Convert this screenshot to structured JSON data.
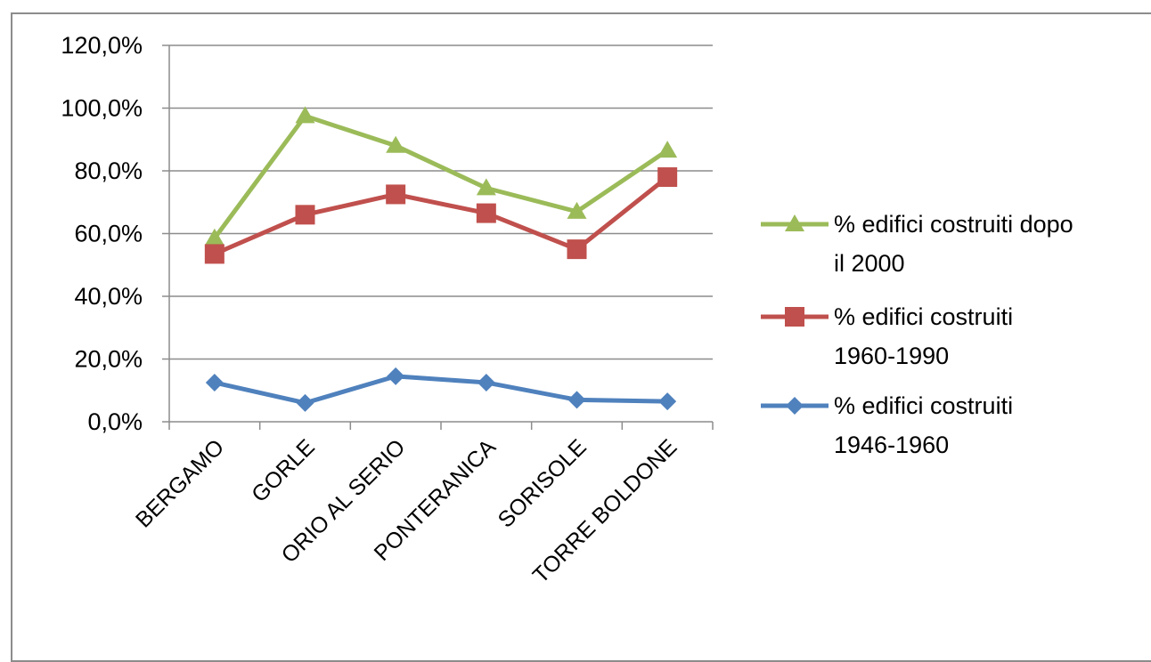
{
  "chart_data": {
    "type": "line",
    "title": "",
    "xlabel": "",
    "ylabel": "",
    "categories": [
      "BERGAMO",
      "GORLE",
      "ORIO AL SERIO",
      "PONTERANICA",
      "SORISOLE",
      "TORRE BOLDONE"
    ],
    "ylim": [
      0,
      120
    ],
    "yticks": [
      0,
      20,
      40,
      60,
      80,
      100,
      120
    ],
    "ytick_labels": [
      "0,0%",
      "20,0%",
      "40,0%",
      "60,0%",
      "80,0%",
      "100,0%",
      "120,0%"
    ],
    "grid": "horizontal",
    "legend_position": "right",
    "series": [
      {
        "name": "% edifici costruiti dopo il 2000",
        "legend_lines": [
          "% edifici costruiti dopo",
          "il 2000"
        ],
        "color": "#9bbb59",
        "marker": "triangle",
        "values": [
          58.5,
          97.5,
          88.0,
          74.5,
          67.0,
          86.5
        ]
      },
      {
        "name": "% edifici costruiti 1960-1990",
        "legend_lines": [
          "% edifici costruiti",
          "1960-1990"
        ],
        "color": "#c0504d",
        "marker": "square",
        "values": [
          53.5,
          66.0,
          72.5,
          66.5,
          55.0,
          78.0
        ]
      },
      {
        "name": "% edifici costruiti 1946-1960",
        "legend_lines": [
          "% edifici costruiti",
          "1946-1960"
        ],
        "color": "#4f81bd",
        "marker": "diamond",
        "values": [
          12.5,
          6.0,
          14.5,
          12.5,
          7.0,
          6.5
        ]
      }
    ]
  }
}
